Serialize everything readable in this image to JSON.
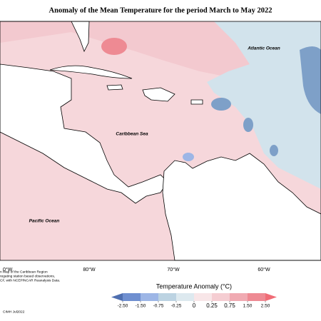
{
  "header": {
    "title": "Anomaly of the Mean Temperature for the period March to May 2022"
  },
  "map": {
    "labels": [
      "Atlantic Ocean",
      "Caribbean Sea",
      "Pacific Ocean"
    ],
    "longitudes": [
      "0°W",
      "80°W",
      "70°W",
      "60°W"
    ]
  },
  "legend": {
    "title": "Temperature Anomaly (°C)",
    "ticks": [
      {
        "value": -2.5,
        "label": "-2.50"
      },
      {
        "value": -1.5,
        "label": "-1.50"
      },
      {
        "value": -0.75,
        "label": "-0.75"
      },
      {
        "value": -0.25,
        "label": "-0.25"
      },
      0,
      0.25,
      0.75,
      {
        "value": 1.5,
        "label": "1.50"
      },
      {
        "value": 2.5,
        "label": "2.50"
      }
    ],
    "colors": [
      "#4f6fb0",
      "#6f8fd0",
      "#9db6e6",
      "#bcd3e2",
      "#dde9ef",
      "#f8e6e8",
      "#f5cdd2",
      "#f0aab2",
      "#ee8a93",
      "#f06c76"
    ]
  },
  "footnote": [
    "n Map of the Caribbean Region",
    "regating station based observations,",
    "CF, with NCEP/NCAR Reanalysis Data."
  ],
  "credit": "CIMH Jul2022"
}
